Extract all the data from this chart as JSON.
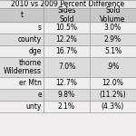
{
  "title": "2010 vs 2009 Percent Difference",
  "col0_header": "t",
  "col1_header": "Sides\nSold",
  "col2_header": "Sold\nVolume",
  "row_labels": [
    "s",
    "county",
    "dge",
    "thorne\nWilderness",
    "er Mtn",
    "e",
    "unty"
  ],
  "sides_sold": [
    "10.5%",
    "12.2%",
    "16.7%",
    "7.0%",
    "12.7%",
    "9.8%",
    "2.1%"
  ],
  "sold_volume": [
    "3.0%",
    "2.9%",
    "5.1%",
    ".9%",
    "12.0%",
    "(11.2%)",
    "(4.3%)"
  ],
  "bg_color": "#f0eeee",
  "alt_row_color": "#dcdcdc",
  "header_bg": "#c8c8c8",
  "title_bg": "#e8e6e6",
  "line_color": "#999999",
  "font_size": 5.5,
  "title_font_size": 5.5
}
